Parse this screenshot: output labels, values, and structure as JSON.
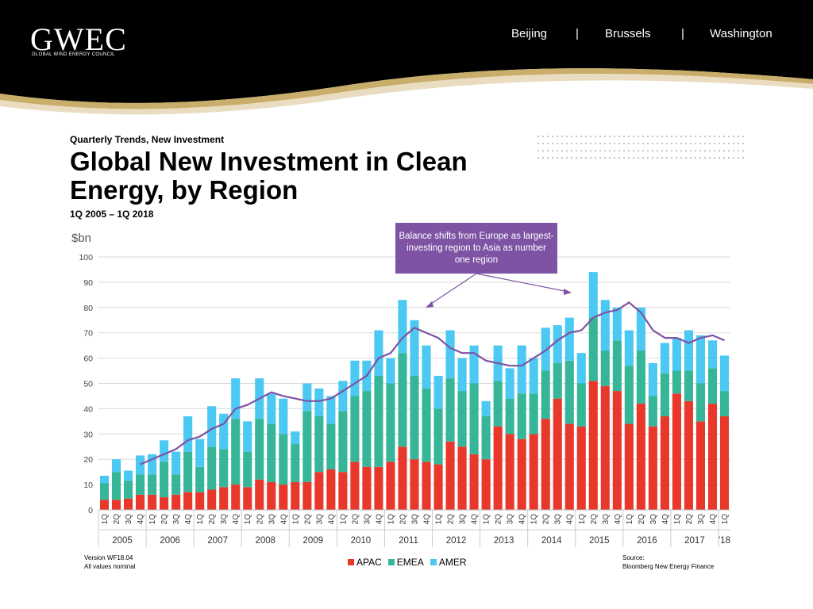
{
  "header": {
    "logo_title": "GWEC",
    "logo_subtitle": "GLOBAL WIND ENERGY COUNCIL",
    "cities": [
      "Beijing",
      "Brussels",
      "Washington"
    ],
    "separator": "|",
    "bg_color": "#000000",
    "accent_color": "#c9ad6a"
  },
  "slide": {
    "subtitle": "Quarterly Trends, New Investment",
    "title": "Global New Investment in Clean Energy, by Region",
    "range": "1Q 2005 – 1Q 2018",
    "version": "Version WF18.04",
    "nominal": "All values nominal",
    "source_label": "Source:",
    "source": "Bloomberg New Energy Finance",
    "callout": "Balance shifts from Europe as largest-investing region to Asia as number one region"
  },
  "chart_data": {
    "type": "bar",
    "stacked": true,
    "unit_label": "$bn",
    "ylim": [
      0,
      100
    ],
    "yticks": [
      0,
      10,
      20,
      30,
      40,
      50,
      60,
      70,
      80,
      90,
      100
    ],
    "grid": true,
    "legend_position": "bottom",
    "quarter_labels": [
      "1Q",
      "2Q",
      "3Q",
      "4Q"
    ],
    "last_year_label": "'18",
    "years": [
      "2005",
      "2006",
      "2007",
      "2008",
      "2009",
      "2010",
      "2011",
      "2012",
      "2013",
      "2014",
      "2015",
      "2016",
      "2017"
    ],
    "categories": [
      "1Q05",
      "2Q05",
      "3Q05",
      "4Q05",
      "1Q06",
      "2Q06",
      "3Q06",
      "4Q06",
      "1Q07",
      "2Q07",
      "3Q07",
      "4Q07",
      "1Q08",
      "2Q08",
      "3Q08",
      "4Q08",
      "1Q09",
      "2Q09",
      "3Q09",
      "4Q09",
      "1Q10",
      "2Q10",
      "3Q10",
      "4Q10",
      "1Q11",
      "2Q11",
      "3Q11",
      "4Q11",
      "1Q12",
      "2Q12",
      "3Q12",
      "4Q12",
      "1Q13",
      "2Q13",
      "3Q13",
      "4Q13",
      "1Q14",
      "2Q14",
      "3Q14",
      "4Q14",
      "1Q15",
      "2Q15",
      "3Q15",
      "4Q15",
      "1Q16",
      "2Q16",
      "3Q16",
      "4Q16",
      "1Q17",
      "2Q17",
      "3Q17",
      "4Q17",
      "1Q18"
    ],
    "series": [
      {
        "name": "APAC",
        "color": "#e8382b",
        "values": [
          4,
          4,
          4.5,
          6,
          6,
          5,
          6,
          7,
          7,
          8,
          9,
          10,
          9,
          12,
          11,
          10,
          11,
          11,
          15,
          16,
          15,
          19,
          17,
          17,
          19,
          25,
          20,
          19,
          18,
          27,
          25,
          22,
          20,
          33,
          30,
          28,
          30,
          36,
          44,
          34,
          33,
          51,
          49,
          47,
          34,
          42,
          33,
          37,
          46,
          43,
          35,
          42,
          37
        ]
      },
      {
        "name": "EMEA",
        "color": "#37b598",
        "values": [
          6.5,
          11,
          7,
          8,
          8,
          14,
          8,
          16,
          10,
          17,
          15,
          26,
          14,
          24,
          23,
          20,
          15,
          28,
          22,
          18,
          24,
          26,
          30,
          36,
          31,
          37,
          33,
          29,
          22,
          25,
          22,
          28,
          17,
          18,
          14,
          18,
          16,
          19,
          14,
          25,
          17,
          25,
          14,
          20,
          23,
          21,
          12,
          17,
          9,
          12,
          15,
          14,
          10
        ]
      },
      {
        "name": "AMER",
        "color": "#4bc9f2",
        "values": [
          3,
          5,
          4,
          7.5,
          8,
          8.5,
          9,
          14,
          11,
          16,
          14,
          16,
          12,
          16,
          12,
          14,
          5,
          11,
          11,
          11,
          12,
          14,
          12,
          18,
          10,
          21,
          22,
          17,
          13,
          19,
          13,
          15,
          6,
          14,
          12,
          19,
          14,
          17,
          15,
          17,
          12,
          18,
          20,
          13,
          14,
          17,
          13,
          12,
          13,
          16,
          19,
          11,
          14
        ]
      }
    ],
    "trend_line": {
      "name": "",
      "color": "#7e53a4",
      "start_index": 3,
      "values": [
        null,
        null,
        null,
        18,
        20,
        22,
        24,
        27.5,
        29,
        32,
        34,
        40,
        41.5,
        44,
        46.5,
        45,
        44,
        43,
        43,
        44,
        47,
        50,
        53,
        60,
        62,
        68,
        72,
        70,
        68,
        64,
        62,
        62,
        59,
        58,
        57,
        57,
        60,
        63,
        67,
        70,
        71,
        76,
        78,
        79,
        82,
        78,
        71,
        68,
        68,
        66,
        68,
        69,
        67
      ]
    }
  }
}
